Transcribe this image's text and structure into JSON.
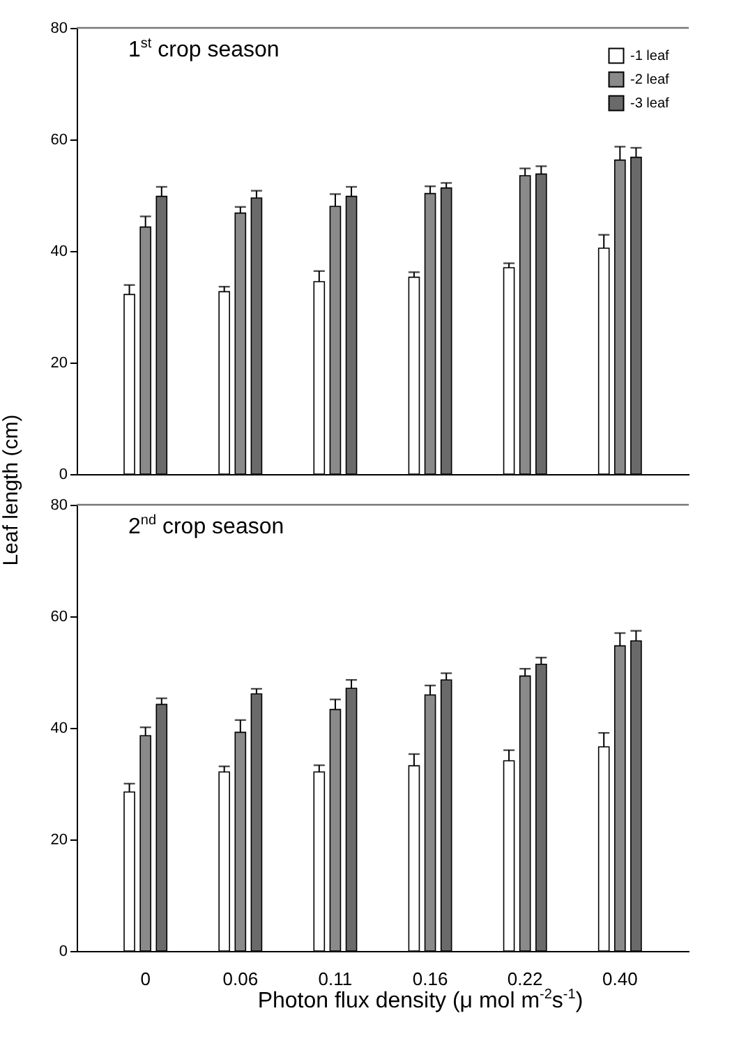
{
  "chart_data": [
    {
      "type": "bar",
      "title": "1$^{st}$ crop season",
      "ylabel": "Leaf length (cm)",
      "categories": [
        "0",
        "0.06",
        "0.11",
        "0.16",
        "0.22",
        "0.40"
      ],
      "ylim": [
        0,
        80
      ],
      "yticks": [
        0,
        20,
        40,
        60,
        80
      ],
      "legend": "top right",
      "tick_labels": "y",
      "series": [
        {
          "name": "-1 leaf",
          "color": "#ffffff",
          "values": [
            32.2,
            32.7,
            34.5,
            35.3,
            37,
            40.5
          ],
          "errors": [
            [
              32.2,
              33.9
            ],
            [
              32.7,
              33.6
            ],
            [
              34.5,
              36.4
            ],
            [
              35.3,
              36.2
            ],
            [
              37,
              37.8
            ],
            [
              40.5,
              42.9
            ]
          ]
        },
        {
          "name": "-2 leaf",
          "color": "#8a8a8a",
          "values": [
            44.3,
            46.8,
            48,
            50.3,
            53.5,
            56.3
          ],
          "errors": [
            [
              44.3,
              46.2
            ],
            [
              46.8,
              47.9
            ],
            [
              48,
              50.2
            ],
            [
              50.3,
              51.6
            ],
            [
              53.5,
              54.8
            ],
            [
              56.3,
              58.7
            ]
          ]
        },
        {
          "name": "-3 leaf",
          "color": "#6a6a6a",
          "values": [
            49.8,
            49.5,
            49.8,
            51.3,
            53.8,
            56.8
          ],
          "errors": [
            [
              49.8,
              51.5
            ],
            [
              49.5,
              50.8
            ],
            [
              49.8,
              51.5
            ],
            [
              51.3,
              52.2
            ],
            [
              53.8,
              55.2
            ],
            [
              56.8,
              58.5
            ]
          ]
        }
      ]
    },
    {
      "type": "bar",
      "title": "2$^{nd}$ crop season",
      "xlabel": "Photon flux density (μ  mol m$^{-2}$s$^{-1}$)",
      "categories": [
        "0",
        "0.06",
        "0.11",
        "0.16",
        "0.22",
        "0.40"
      ],
      "ylim": [
        0,
        80
      ],
      "yticks": [
        0,
        20,
        40,
        60,
        80
      ],
      "series": [
        {
          "name": "-1 leaf",
          "color": "#ffffff",
          "values": [
            28.5,
            32.1,
            32.1,
            33.2,
            34.1,
            36.6
          ],
          "errors": [
            [
              28.5,
              30
            ],
            [
              32.1,
              33.1
            ],
            [
              32.1,
              33.3
            ],
            [
              33.2,
              35.3
            ],
            [
              34.1,
              36
            ],
            [
              36.6,
              39.1
            ]
          ]
        },
        {
          "name": "-2 leaf",
          "color": "#8a8a8a",
          "values": [
            38.6,
            39.2,
            43.3,
            45.9,
            49.3,
            54.7
          ],
          "errors": [
            [
              38.6,
              40.1
            ],
            [
              39.2,
              41.4
            ],
            [
              43.3,
              45.1
            ],
            [
              45.9,
              47.6
            ],
            [
              49.3,
              50.6
            ],
            [
              54.7,
              57
            ]
          ]
        },
        {
          "name": "-3 leaf",
          "color": "#6a6a6a",
          "values": [
            44.2,
            46.1,
            47.1,
            48.6,
            51.4,
            55.6
          ],
          "errors": [
            [
              44.2,
              45.3
            ],
            [
              46.1,
              47
            ],
            [
              47.1,
              48.6
            ],
            [
              48.6,
              49.8
            ],
            [
              51.4,
              52.6
            ],
            [
              55.6,
              57.4
            ]
          ]
        }
      ]
    }
  ]
}
